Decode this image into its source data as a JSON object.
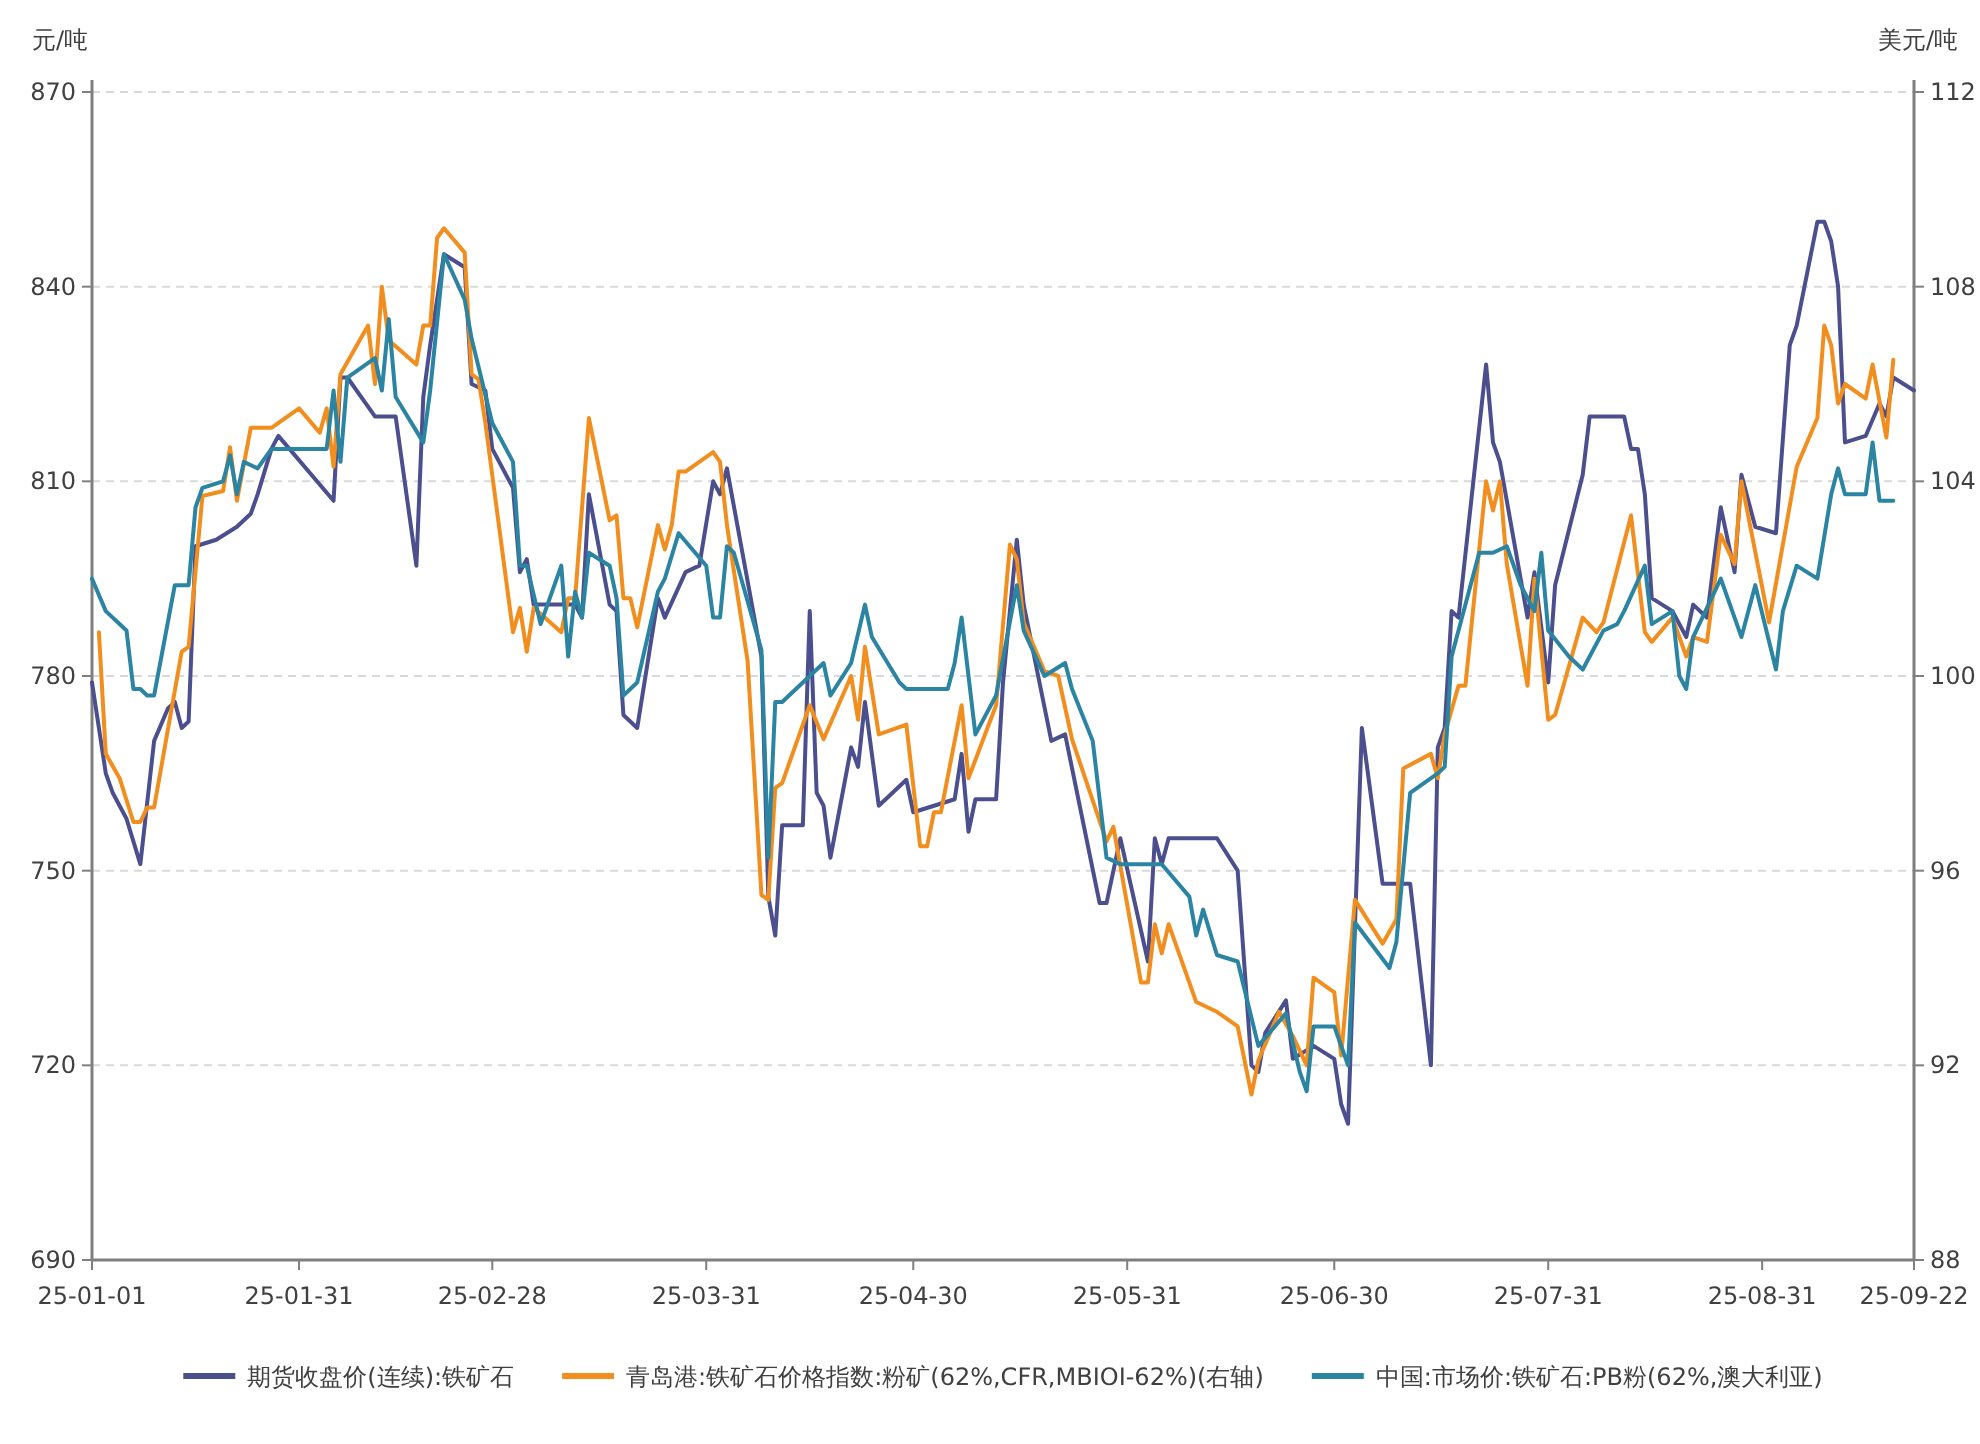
{
  "chart_data": {
    "type": "line",
    "ylabel": "元/吨",
    "y2label": "美元/吨",
    "xlim": [
      "--01-01",
      "--09-22"
    ],
    "ylim": [
      690,
      870
    ],
    "yticks": [
      690,
      720,
      750,
      780,
      810,
      840,
      870
    ],
    "y2lim": [
      88,
      112
    ],
    "y2ticks": [
      88,
      92,
      96,
      100,
      104,
      108,
      112
    ],
    "xticks": [
      {
        "value": "--01-01",
        "label": "25-01-01"
      },
      {
        "value": "--01-31",
        "label": "25-01-31"
      },
      {
        "value": "--02-28",
        "label": "25-02-28"
      },
      {
        "value": "--03-31",
        "label": "25-03-31"
      },
      {
        "value": "--04-30",
        "label": "25-04-30"
      },
      {
        "value": "--05-31",
        "label": "25-05-31"
      },
      {
        "value": "--06-30",
        "label": "25-06-30"
      },
      {
        "value": "--07-31",
        "label": "25-07-31"
      },
      {
        "value": "--08-31",
        "label": "25-08-31"
      },
      {
        "value": "--09-22",
        "label": "25-09-22"
      }
    ],
    "grid": "y",
    "legend": "bottom",
    "series": [
      {
        "name": "期货收盘价(连续):铁矿石",
        "color": "#4b4f8e",
        "x": [
          "--01-01",
          "--01-03",
          "--01-04",
          "--01-06",
          "--01-08",
          "--01-10",
          "--01-12",
          "--01-13",
          "--01-14",
          "--01-15",
          "--01-16",
          "--01-19",
          "--01-22",
          "--01-24",
          "--01-25",
          "--01-27",
          "--01-28",
          "--02-05",
          "--02-06",
          "--02-07",
          "--02-11",
          "--02-14",
          "--02-17",
          "--02-18",
          "--02-19",
          "--02-21",
          "--02-24",
          "--02-25",
          "--02-27",
          "--02-28",
          "--03-03",
          "--03-04",
          "--03-05",
          "--03-06",
          "--03-12",
          "--03-13",
          "--03-14",
          "--03-17",
          "--03-18",
          "--03-19",
          "--03-21",
          "--03-24",
          "--03-25",
          "--03-28",
          "--03-30",
          "--04-01",
          "--04-02",
          "--04-03",
          "--04-08",
          "--04-09",
          "--04-10",
          "--04-11",
          "--04-14",
          "--04-15",
          "--04-16",
          "--04-17",
          "--04-18",
          "--04-21",
          "--04-22",
          "--04-23",
          "--04-25",
          "--04-29",
          "--04-30",
          "--05-06",
          "--05-07",
          "--05-08",
          "--05-09",
          "--05-12",
          "--05-13",
          "--05-15",
          "--05-16",
          "--05-20",
          "--05-22",
          "--05-27",
          "--05-28",
          "--05-30",
          "--06-03",
          "--06-04",
          "--06-05",
          "--06-06",
          "--06-13",
          "--06-16",
          "--06-18",
          "--06-19",
          "--06-20",
          "--06-23",
          "--06-24",
          "--06-27",
          "--06-30",
          "--07-01",
          "--07-02",
          "--07-04",
          "--07-07",
          "--07-11",
          "--07-14",
          "--07-15",
          "--07-16",
          "--07-17",
          "--07-18",
          "--07-22",
          "--07-23",
          "--07-24",
          "--07-28",
          "--07-29",
          "--07-31",
          "--08-01",
          "--08-05",
          "--08-06",
          "--08-11",
          "--08-12",
          "--08-13",
          "--08-14",
          "--08-15",
          "--08-18",
          "--08-20",
          "--08-21",
          "--08-23",
          "--08-25",
          "--08-27",
          "--08-28",
          "--08-30",
          "--09-02",
          "--09-04",
          "--09-05",
          "--09-08",
          "--09-09",
          "--09-10",
          "--09-11",
          "--09-12",
          "--09-15",
          "--09-17",
          "--09-18",
          "--09-19",
          "--09-22"
        ],
        "values": [
          779,
          765,
          762,
          758,
          751,
          770,
          775,
          776,
          772,
          773,
          800,
          801,
          803,
          805,
          808,
          815,
          817,
          807,
          826,
          826,
          820,
          820,
          797,
          823,
          831,
          845,
          843,
          825,
          824,
          815,
          809,
          796,
          798,
          791,
          791,
          789,
          808,
          791,
          790,
          774,
          772,
          792,
          789,
          796,
          797,
          810,
          808,
          812,
          783,
          746,
          740,
          757,
          757,
          790,
          762,
          760,
          752,
          769,
          766,
          776,
          760,
          764,
          759,
          761,
          768,
          756,
          761,
          761,
          779,
          801,
          791,
          770,
          771,
          745,
          745,
          755,
          736,
          755,
          751,
          755,
          755,
          750,
          720,
          719,
          725,
          730,
          721,
          723,
          721,
          714,
          711,
          772,
          748,
          748,
          720,
          769,
          772,
          790,
          789,
          828,
          816,
          813,
          789,
          796,
          779,
          794,
          811,
          820,
          820,
          815,
          815,
          808,
          792,
          790,
          786,
          791,
          789,
          806,
          796,
          811,
          803,
          802,
          831,
          834,
          850,
          850,
          847,
          840,
          816,
          817,
          822,
          820,
          826,
          824
        ]
      },
      {
        "name": "青岛港:铁矿石价格指数:粉矿(62%,CFR,MBIOI-62%)(右轴)",
        "color": "#f28e1e",
        "axis": "y2",
        "x": [
          "--01-02",
          "--01-03",
          "--01-05",
          "--01-07",
          "--01-08",
          "--01-09",
          "--01-10",
          "--01-14",
          "--01-15",
          "--01-17",
          "--01-20",
          "--01-21",
          "--01-22",
          "--01-24",
          "--01-27",
          "--01-31",
          "--02-03",
          "--02-04",
          "--02-05",
          "--02-06",
          "--02-10",
          "--02-11",
          "--02-12",
          "--02-13",
          "--02-17",
          "--02-18",
          "--02-19",
          "--02-20",
          "--02-21",
          "--02-24",
          "--02-25",
          "--02-26",
          "--02-27",
          "--03-03",
          "--03-04",
          "--03-05",
          "--03-06",
          "--03-10",
          "--03-11",
          "--03-12",
          "--03-14",
          "--03-17",
          "--03-18",
          "--03-19",
          "--03-20",
          "--03-21",
          "--03-24",
          "--03-25",
          "--03-26",
          "--03-27",
          "--03-28",
          "--04-01",
          "--04-02",
          "--04-03",
          "--04-06",
          "--04-08",
          "--04-09",
          "--04-10",
          "--04-11",
          "--04-15",
          "--04-17",
          "--04-21",
          "--04-22",
          "--04-23",
          "--04-25",
          "--04-29",
          "--05-01",
          "--05-02",
          "--05-03",
          "--05-04",
          "--05-07",
          "--05-08",
          "--05-12",
          "--05-14",
          "--05-15",
          "--05-16",
          "--05-19",
          "--05-21",
          "--05-23",
          "--05-28",
          "--05-29",
          "--06-02",
          "--06-03",
          "--06-04",
          "--06-05",
          "--06-06",
          "--06-10",
          "--06-13",
          "--06-16",
          "--06-18",
          "--06-19",
          "--06-22",
          "--06-24",
          "--06-26",
          "--06-27",
          "--06-30",
          "--07-01",
          "--07-03",
          "--07-07",
          "--07-09",
          "--07-10",
          "--07-14",
          "--07-15",
          "--07-16",
          "--07-18",
          "--07-19",
          "--07-22",
          "--07-23",
          "--07-24",
          "--07-25",
          "--07-28",
          "--07-29",
          "--07-31",
          "--08-01",
          "--08-05",
          "--08-07",
          "--08-08",
          "--08-12",
          "--08-14",
          "--08-15",
          "--08-18",
          "--08-20",
          "--08-21",
          "--08-23",
          "--08-25",
          "--08-27",
          "--08-28",
          "--09-01",
          "--09-05",
          "--09-08",
          "--09-09",
          "--09-10",
          "--09-11",
          "--09-12",
          "--09-15",
          "--09-16",
          "--09-18",
          "--09-19"
        ],
        "values": [
          100.9,
          98.4,
          97.9,
          97.0,
          97.0,
          97.3,
          97.3,
          100.5,
          100.6,
          103.7,
          103.8,
          104.7,
          103.6,
          105.1,
          105.1,
          105.5,
          105.0,
          105.5,
          104.3,
          106.2,
          107.2,
          106.0,
          108.0,
          106.9,
          106.4,
          107.2,
          107.2,
          109.0,
          109.2,
          108.7,
          106.2,
          106.1,
          105.2,
          100.9,
          101.4,
          100.5,
          101.4,
          100.9,
          101.6,
          101.6,
          105.3,
          103.2,
          103.3,
          101.6,
          101.6,
          101.0,
          103.1,
          102.6,
          103.1,
          104.2,
          104.2,
          104.6,
          104.4,
          103.1,
          100.3,
          95.5,
          95.4,
          97.7,
          97.8,
          99.4,
          98.7,
          100.0,
          99.1,
          100.6,
          98.8,
          99.0,
          96.5,
          96.5,
          97.2,
          97.2,
          99.4,
          97.9,
          99.4,
          102.7,
          102.4,
          101.1,
          100.1,
          100.0,
          98.7,
          96.6,
          96.9,
          93.7,
          93.7,
          94.9,
          94.3,
          94.9,
          93.3,
          93.1,
          92.8,
          91.4,
          92.1,
          93.1,
          92.6,
          92.0,
          93.8,
          93.5,
          92.2,
          95.4,
          94.5,
          95.0,
          98.1,
          98.4,
          97.9,
          98.8,
          99.8,
          99.8,
          104.0,
          103.4,
          104.0,
          102.3,
          99.8,
          102.0,
          99.1,
          99.2,
          101.2,
          100.9,
          101.1,
          103.3,
          100.9,
          100.7,
          101.2,
          100.4,
          100.8,
          100.7,
          102.9,
          102.3,
          104.0,
          101.1,
          104.3,
          105.3,
          107.2,
          106.8,
          105.6,
          106.0,
          105.7,
          106.4,
          104.9,
          106.5
        ]
      },
      {
        "name": "中国:市场价:铁矿石:PB粉(62%,澳大利亚)",
        "color": "#2a84a2",
        "x": [
          "--01-01",
          "--01-03",
          "--01-06",
          "--01-07",
          "--01-08",
          "--01-09",
          "--01-10",
          "--01-13",
          "--01-15",
          "--01-16",
          "--01-17",
          "--01-20",
          "--01-21",
          "--01-22",
          "--01-23",
          "--01-25",
          "--01-27",
          "--02-04",
          "--02-05",
          "--02-06",
          "--02-07",
          "--02-11",
          "--02-12",
          "--02-13",
          "--02-14",
          "--02-18",
          "--02-19",
          "--02-21",
          "--02-24",
          "--02-25",
          "--02-28",
          "--03-03",
          "--03-04",
          "--03-05",
          "--03-07",
          "--03-10",
          "--03-11",
          "--03-12",
          "--03-13",
          "--03-14",
          "--03-17",
          "--03-18",
          "--03-19",
          "--03-21",
          "--03-24",
          "--03-25",
          "--03-27",
          "--03-31",
          "--04-01",
          "--04-02",
          "--04-03",
          "--04-04",
          "--04-08",
          "--04-09",
          "--04-10",
          "--04-11",
          "--04-17",
          "--04-18",
          "--04-21",
          "--04-23",
          "--04-24",
          "--04-28",
          "--04-29",
          "--05-05",
          "--05-06",
          "--05-07",
          "--05-09",
          "--05-12",
          "--05-15",
          "--05-16",
          "--05-19",
          "--05-22",
          "--05-23",
          "--05-26",
          "--05-28",
          "--05-30",
          "--06-02",
          "--06-05",
          "--06-09",
          "--06-10",
          "--06-11",
          "--06-13",
          "--06-16",
          "--06-19",
          "--06-23",
          "--06-25",
          "--06-26",
          "--06-27",
          "--06-30",
          "--07-02",
          "--07-03",
          "--07-08",
          "--07-09",
          "--07-11",
          "--07-15",
          "--07-16",
          "--07-17",
          "--07-21",
          "--07-23",
          "--07-25",
          "--07-27",
          "--07-29",
          "--07-30",
          "--07-31",
          "--08-03",
          "--08-05",
          "--08-08",
          "--08-10",
          "--08-11",
          "--08-14",
          "--08-15",
          "--08-18",
          "--08-19",
          "--08-20",
          "--08-21",
          "--08-25",
          "--08-28",
          "--08-30",
          "--09-02",
          "--09-03",
          "--09-05",
          "--09-08",
          "--09-10",
          "--09-11",
          "--09-12",
          "--09-15",
          "--09-16",
          "--09-17",
          "--09-19"
        ],
        "values": [
          795,
          790,
          787,
          778,
          778,
          777,
          777,
          794,
          794,
          806,
          809,
          810,
          814,
          808,
          813,
          812,
          815,
          815,
          824,
          813,
          826,
          829,
          824,
          835,
          823,
          816,
          824,
          845,
          838,
          832,
          819,
          813,
          797,
          797,
          788,
          797,
          783,
          793,
          789,
          799,
          797,
          792,
          777,
          779,
          793,
          795,
          802,
          797,
          789,
          789,
          800,
          799,
          784,
          752,
          776,
          776,
          782,
          777,
          782,
          791,
          786,
          779,
          778,
          778,
          782,
          789,
          771,
          777,
          794,
          787,
          780,
          782,
          778,
          770,
          752,
          751,
          751,
          751,
          746,
          740,
          744,
          737,
          736,
          723,
          728,
          719,
          716,
          726,
          726,
          720,
          742,
          735,
          739,
          762,
          765,
          766,
          783,
          799,
          799,
          800,
          794,
          790,
          799,
          787,
          783,
          781,
          787,
          788,
          790,
          797,
          788,
          790,
          780,
          778,
          786,
          795,
          786,
          794,
          781,
          790,
          797,
          795,
          808,
          812,
          808,
          808,
          816,
          807,
          807
        ]
      }
    ]
  }
}
